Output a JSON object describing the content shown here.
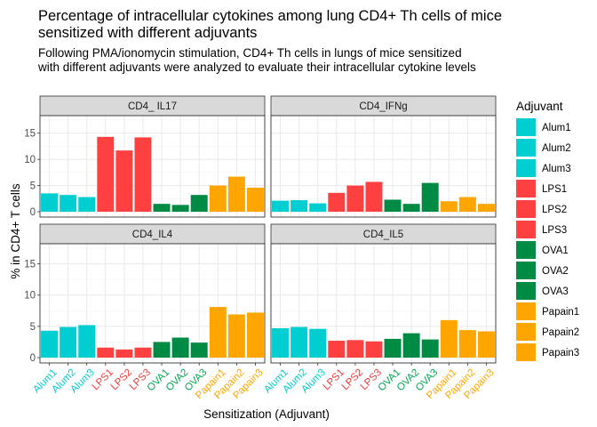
{
  "chart_data": {
    "type": "bar",
    "title": "Percentage of intracellular cytokines among lung CD4+ Th cells of mice sensitized with different adjuvants",
    "title_lines": [
      "Percentage of intracellular cytokines among lung CD4+ Th cells of mice",
      "sensitized with different adjuvants"
    ],
    "subtitle": "Following PMA/ionomycin stimulation, CD4+ Th cells in lungs of mice sensitized with different adjuvants were analyzed to evaluate their intracellular cytokine levels",
    "subtitle_lines": [
      "Following PMA/ionomycin stimulation, CD4+ Th cells in lungs of mice sensitized",
      "with different adjuvants were analyzed to evaluate their intracellular cytokine levels"
    ],
    "xlabel": "Sensitization (Adjuvant)",
    "ylabel": "% in CD4+ T cells",
    "ylim": [
      0,
      17.5
    ],
    "yticks": [
      0,
      5,
      10,
      15
    ],
    "grid": true,
    "legend_position": "right",
    "legend_title": "Adjuvant",
    "categories": [
      "Alum1",
      "Alum2",
      "Alum3",
      "LPS1",
      "LPS2",
      "LPS3",
      "OVA1",
      "OVA2",
      "OVA3",
      "Papain1",
      "Papain2",
      "Papain3"
    ],
    "category_colors": [
      "#00CED1",
      "#00CED1",
      "#00CED1",
      "#FF4040",
      "#FF4040",
      "#FF4040",
      "#008B45",
      "#008B45",
      "#008B45",
      "#FFA500",
      "#FFA500",
      "#FFA500"
    ],
    "legend_colors": [
      "#00CED1",
      "#00CED1",
      "#00CED1",
      "#FF4040",
      "#FF4040",
      "#FF4040",
      "#008B45",
      "#008B45",
      "#008B45",
      "#FFA500",
      "#FFA500",
      "#FFA500"
    ],
    "label_colors": [
      "#00CDCD",
      "#00CDCD",
      "#00CDCD",
      "#EE3B3B",
      "#EE3B3B",
      "#EE3B3B",
      "#00A650",
      "#00A650",
      "#00A650",
      "#FFA500",
      "#FFA500",
      "#FFA500"
    ],
    "panels": [
      {
        "name": "CD4_ IL17",
        "values": [
          3.5,
          3.2,
          2.8,
          14.3,
          11.7,
          14.2,
          1.5,
          1.3,
          3.2,
          5.0,
          6.7,
          4.6
        ]
      },
      {
        "name": "CD4_IFNg",
        "values": [
          2.1,
          2.2,
          1.6,
          3.6,
          5.0,
          5.7,
          2.3,
          1.5,
          5.5,
          2.0,
          2.8,
          1.5
        ]
      },
      {
        "name": "CD4_IL4",
        "values": [
          4.3,
          4.9,
          5.2,
          1.6,
          1.3,
          1.6,
          2.5,
          3.2,
          2.4,
          8.1,
          6.9,
          7.2
        ]
      },
      {
        "name": "CD4_IL5",
        "values": [
          4.7,
          4.9,
          4.6,
          2.7,
          2.8,
          2.6,
          3.0,
          3.9,
          2.9,
          6.0,
          4.4,
          4.2
        ]
      }
    ]
  }
}
